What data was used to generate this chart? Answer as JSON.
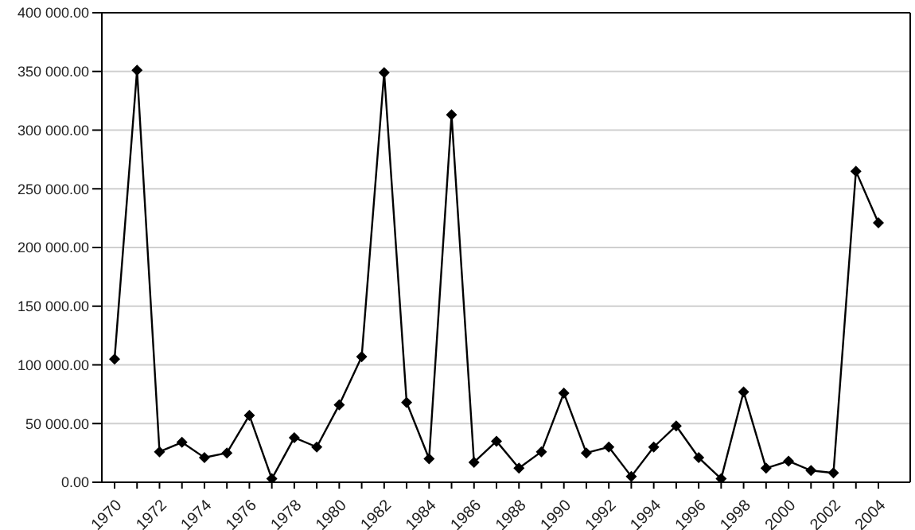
{
  "chart_data": {
    "type": "line",
    "categories": [
      "1970",
      null,
      "1972",
      null,
      "1974",
      null,
      "1976",
      null,
      "1978",
      null,
      "1980",
      null,
      "1982",
      null,
      "1984",
      null,
      "1986",
      null,
      "1988",
      null,
      "1990",
      null,
      "1992",
      null,
      "1994",
      null,
      "1996",
      null,
      "1998",
      null,
      "2000",
      null,
      "2002",
      null,
      "2004"
    ],
    "series": [
      {
        "color": "#000000",
        "values": [
          105000,
          351000,
          26000,
          34000,
          21000,
          25000,
          57000,
          3000,
          38000,
          30000,
          66000,
          107000,
          349000,
          68000,
          20000,
          313000,
          17000,
          35000,
          12000,
          26000,
          76000,
          25000,
          30000,
          5000,
          30000,
          48000,
          21000,
          3000,
          77000,
          12000,
          18000,
          10000,
          8000,
          265000,
          221000
        ]
      }
    ],
    "ylim": [
      0,
      400000
    ],
    "yticks": [
      {
        "value": 0,
        "label": "0.00"
      },
      {
        "value": 50000,
        "label": "50 000.00"
      },
      {
        "value": 100000,
        "label": "100 000.00"
      },
      {
        "value": 150000,
        "label": "150 000.00"
      },
      {
        "value": 200000,
        "label": "200 000.00"
      },
      {
        "value": 250000,
        "label": "250 000.00"
      },
      {
        "value": 300000,
        "label": "300 000.00"
      },
      {
        "value": 350000,
        "label": "350 000.00"
      },
      {
        "value": 400000,
        "label": "400 000.00"
      }
    ],
    "grid": "y",
    "marker": "diamond",
    "line_style": "solid"
  }
}
